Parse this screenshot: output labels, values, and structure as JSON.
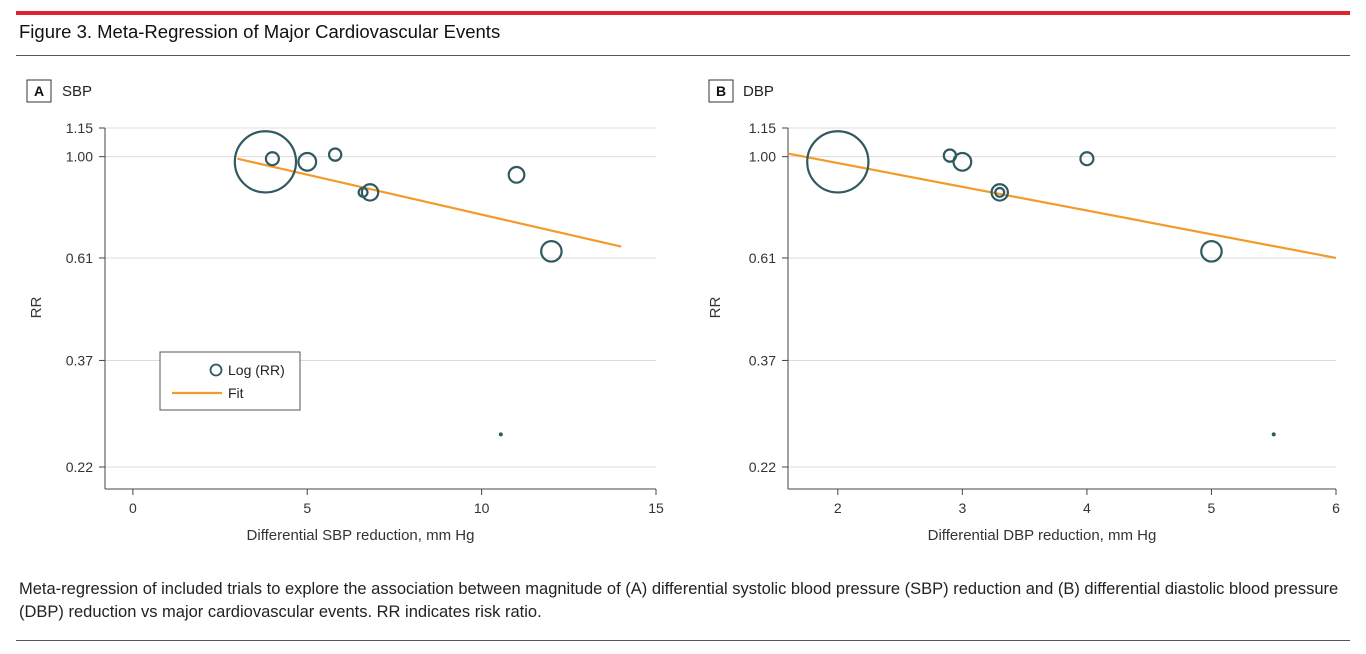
{
  "figure": {
    "title": "Figure 3. Meta-Regression of Major Cardiovascular Events",
    "caption": "Meta-regression of included trials to explore the association between magnitude of (A) differential systolic blood pressure (SBP) reduction and (B) differential diastolic blood pressure (DBP) reduction vs major cardiovascular events. RR indicates risk ratio."
  },
  "colors": {
    "accent_red": "#e0202e",
    "marker": "#2f5a60",
    "fit": "#f39a2c",
    "grid": "#dcdcdc",
    "axis": "#444444"
  },
  "legend": {
    "marker_label": "Log (RR)",
    "fit_label": "Fit"
  },
  "chart_data": [
    {
      "panel": "A",
      "panel_title": "SBP",
      "type": "scatter",
      "xlabel": "Differential SBP reduction, mm Hg",
      "ylabel": "RR",
      "xlim": [
        -0.8,
        15
      ],
      "xticks": [
        0,
        5,
        10,
        15
      ],
      "xtick_labels": [
        "0",
        "5",
        "10",
        "15"
      ],
      "y_scale": "log",
      "ylim": [
        0.22,
        1.15
      ],
      "yticks": [
        0.22,
        0.37,
        0.61,
        1.0,
        1.15
      ],
      "ytick_labels": [
        "0.22",
        "0.37",
        "0.61",
        "1.00",
        "1.15"
      ],
      "points": [
        {
          "x": 3.8,
          "y": 0.975,
          "weight": 9.0
        },
        {
          "x": 4.0,
          "y": 0.99,
          "weight": 1.9
        },
        {
          "x": 5.0,
          "y": 0.975,
          "weight": 2.6
        },
        {
          "x": 5.8,
          "y": 1.01,
          "weight": 1.8
        },
        {
          "x": 6.6,
          "y": 0.84,
          "weight": 1.3
        },
        {
          "x": 6.8,
          "y": 0.84,
          "weight": 2.4
        },
        {
          "x": 11.0,
          "y": 0.915,
          "weight": 2.3
        },
        {
          "x": 12.0,
          "y": 0.63,
          "weight": 3.0
        },
        {
          "x": 10.55,
          "y": 0.258,
          "weight": 0.6
        }
      ],
      "fit": {
        "x": [
          3.0,
          14.0
        ],
        "y": [
          0.99,
          0.645
        ]
      },
      "legend_position": "lower-left"
    },
    {
      "panel": "B",
      "panel_title": "DBP",
      "type": "scatter",
      "xlabel": "Differential DBP reduction, mm Hg",
      "ylabel": "RR",
      "xlim": [
        1.6,
        6
      ],
      "xticks": [
        2,
        3,
        4,
        5,
        6
      ],
      "xtick_labels": [
        "2",
        "3",
        "4",
        "5",
        "6"
      ],
      "y_scale": "log",
      "ylim": [
        0.22,
        1.15
      ],
      "yticks": [
        0.22,
        0.37,
        0.61,
        1.0,
        1.15
      ],
      "ytick_labels": [
        "0.22",
        "0.37",
        "0.61",
        "1.00",
        "1.15"
      ],
      "points": [
        {
          "x": 2.0,
          "y": 0.975,
          "weight": 9.0
        },
        {
          "x": 2.9,
          "y": 1.005,
          "weight": 1.8
        },
        {
          "x": 3.0,
          "y": 0.975,
          "weight": 2.6
        },
        {
          "x": 3.3,
          "y": 0.84,
          "weight": 2.4
        },
        {
          "x": 3.3,
          "y": 0.84,
          "weight": 1.3
        },
        {
          "x": 4.0,
          "y": 0.99,
          "weight": 1.9
        },
        {
          "x": 5.0,
          "y": 0.63,
          "weight": 3.0
        },
        {
          "x": 5.5,
          "y": 0.258,
          "weight": 0.6
        }
      ],
      "fit": {
        "x": [
          1.6,
          6.0
        ],
        "y": [
          1.015,
          0.61
        ]
      }
    }
  ]
}
